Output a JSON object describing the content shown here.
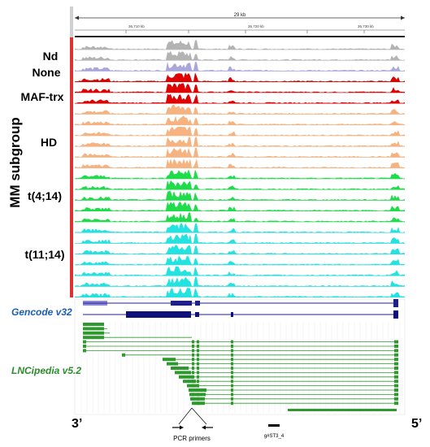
{
  "ruler": {
    "span_label": "29 kb",
    "tick_labels": [
      "36,710 kb",
      "36,720 kb",
      "36,730 kb"
    ]
  },
  "axis_title": "MM subgroup",
  "groups": [
    {
      "label": "Nd",
      "color": "#b3b3b3",
      "tracks": 2
    },
    {
      "label": "None",
      "color": "#a9a6dc",
      "tracks": 1
    },
    {
      "label": "MAF-trx",
      "color": "#e00000",
      "tracks": 3
    },
    {
      "label": "HD",
      "color": "#f6b37f",
      "tracks": 6
    },
    {
      "label": "t(4;14)",
      "color": "#1fdc4a",
      "tracks": 5
    },
    {
      "label": "t(11;14)",
      "color": "#22e3e0",
      "tracks": 7
    }
  ],
  "annotations": {
    "gencode_label": "Gencode v32",
    "gencode_color": "#1a5fb4",
    "lncipedia_label": "LNCipedia v5.2",
    "lncipedia_color": "#2e8b2e"
  },
  "bottom": {
    "left_end": "3’",
    "right_end": "5’",
    "primers_label": "PCR primers",
    "grna_label": "g#ST3_4"
  },
  "colors": {
    "sidebar": "#e03131",
    "gencode_transcript": "#1f1f8a",
    "gencode_light": "#8c86d8",
    "lncipedia_transcript": "#2e9a2e"
  }
}
